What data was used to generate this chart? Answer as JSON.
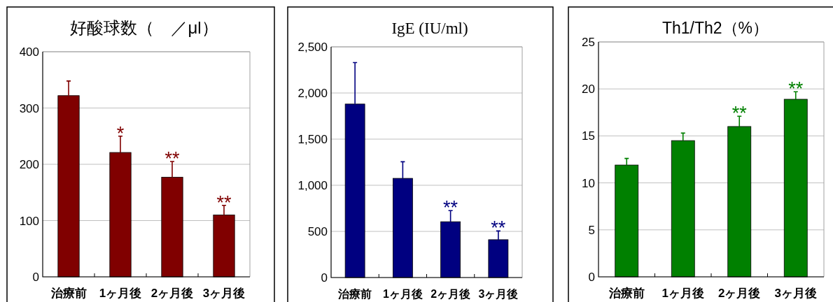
{
  "chart_data": [
    {
      "type": "bar",
      "title": "好酸球数（　／μl）",
      "categories": [
        "治療前",
        "1ヶ月後",
        "2ヶ月後",
        "3ヶ月後"
      ],
      "values": [
        322,
        221,
        177,
        110
      ],
      "color": "#800000",
      "errors": [
        [
          322,
          348
        ],
        [
          221,
          250
        ],
        [
          177,
          205
        ],
        [
          110,
          127
        ]
      ],
      "ylim": [
        0,
        400
      ],
      "yticks": [
        0,
        100,
        200,
        300,
        400
      ],
      "grid": "y",
      "annotations": [
        {
          "text": "*",
          "x": "1ヶ月後",
          "y": 250
        },
        {
          "text": "**",
          "x": "2ヶ月後",
          "y": 205
        },
        {
          "text": "**",
          "x": "3ヶ月後",
          "y": 127
        }
      ]
    },
    {
      "type": "bar",
      "title": "IgE (IU/ml)",
      "categories": [
        "治療前",
        "1ヶ月後",
        "2ヶ月後",
        "3ヶ月後"
      ],
      "values": [
        1880,
        1075,
        605,
        410
      ],
      "color": "#000080",
      "errors": [
        [
          1880,
          2330
        ],
        [
          1075,
          1255
        ],
        [
          605,
          725
        ],
        [
          410,
          505
        ]
      ],
      "ylim": [
        0,
        2500
      ],
      "yticks": [
        0,
        {
          "value": 500,
          "label": "500"
        },
        {
          "value": 1000,
          "label": "1,000"
        },
        {
          "value": 1500,
          "label": "1,500"
        },
        {
          "value": 2000,
          "label": "2,000"
        },
        {
          "value": 2500,
          "label": "2,500"
        }
      ],
      "grid": "y",
      "annotations": [
        {
          "text": "**",
          "x": "2ヶ月後",
          "y": 725
        },
        {
          "text": "**",
          "x": "3ヶ月後",
          "y": 505
        }
      ]
    },
    {
      "type": "bar",
      "title": "Th1/Th2（%）",
      "categories": [
        "治療前",
        "1ヶ月後",
        "2ヶ月後",
        "3ヶ月後"
      ],
      "values": [
        11.9,
        14.5,
        16.0,
        18.9
      ],
      "color": "#008000",
      "errors": [
        [
          11.9,
          12.6
        ],
        [
          14.5,
          15.3
        ],
        [
          16.0,
          17.1
        ],
        [
          18.9,
          19.7
        ]
      ],
      "ylim": [
        0,
        25
      ],
      "yticks": [
        0,
        5,
        10,
        15,
        20,
        25
      ],
      "grid": "y",
      "annotations": [
        {
          "text": "**",
          "x": "2ヶ月後",
          "y": 17.1
        },
        {
          "text": "**",
          "x": "3ヶ月後",
          "y": 19.7
        }
      ]
    }
  ]
}
